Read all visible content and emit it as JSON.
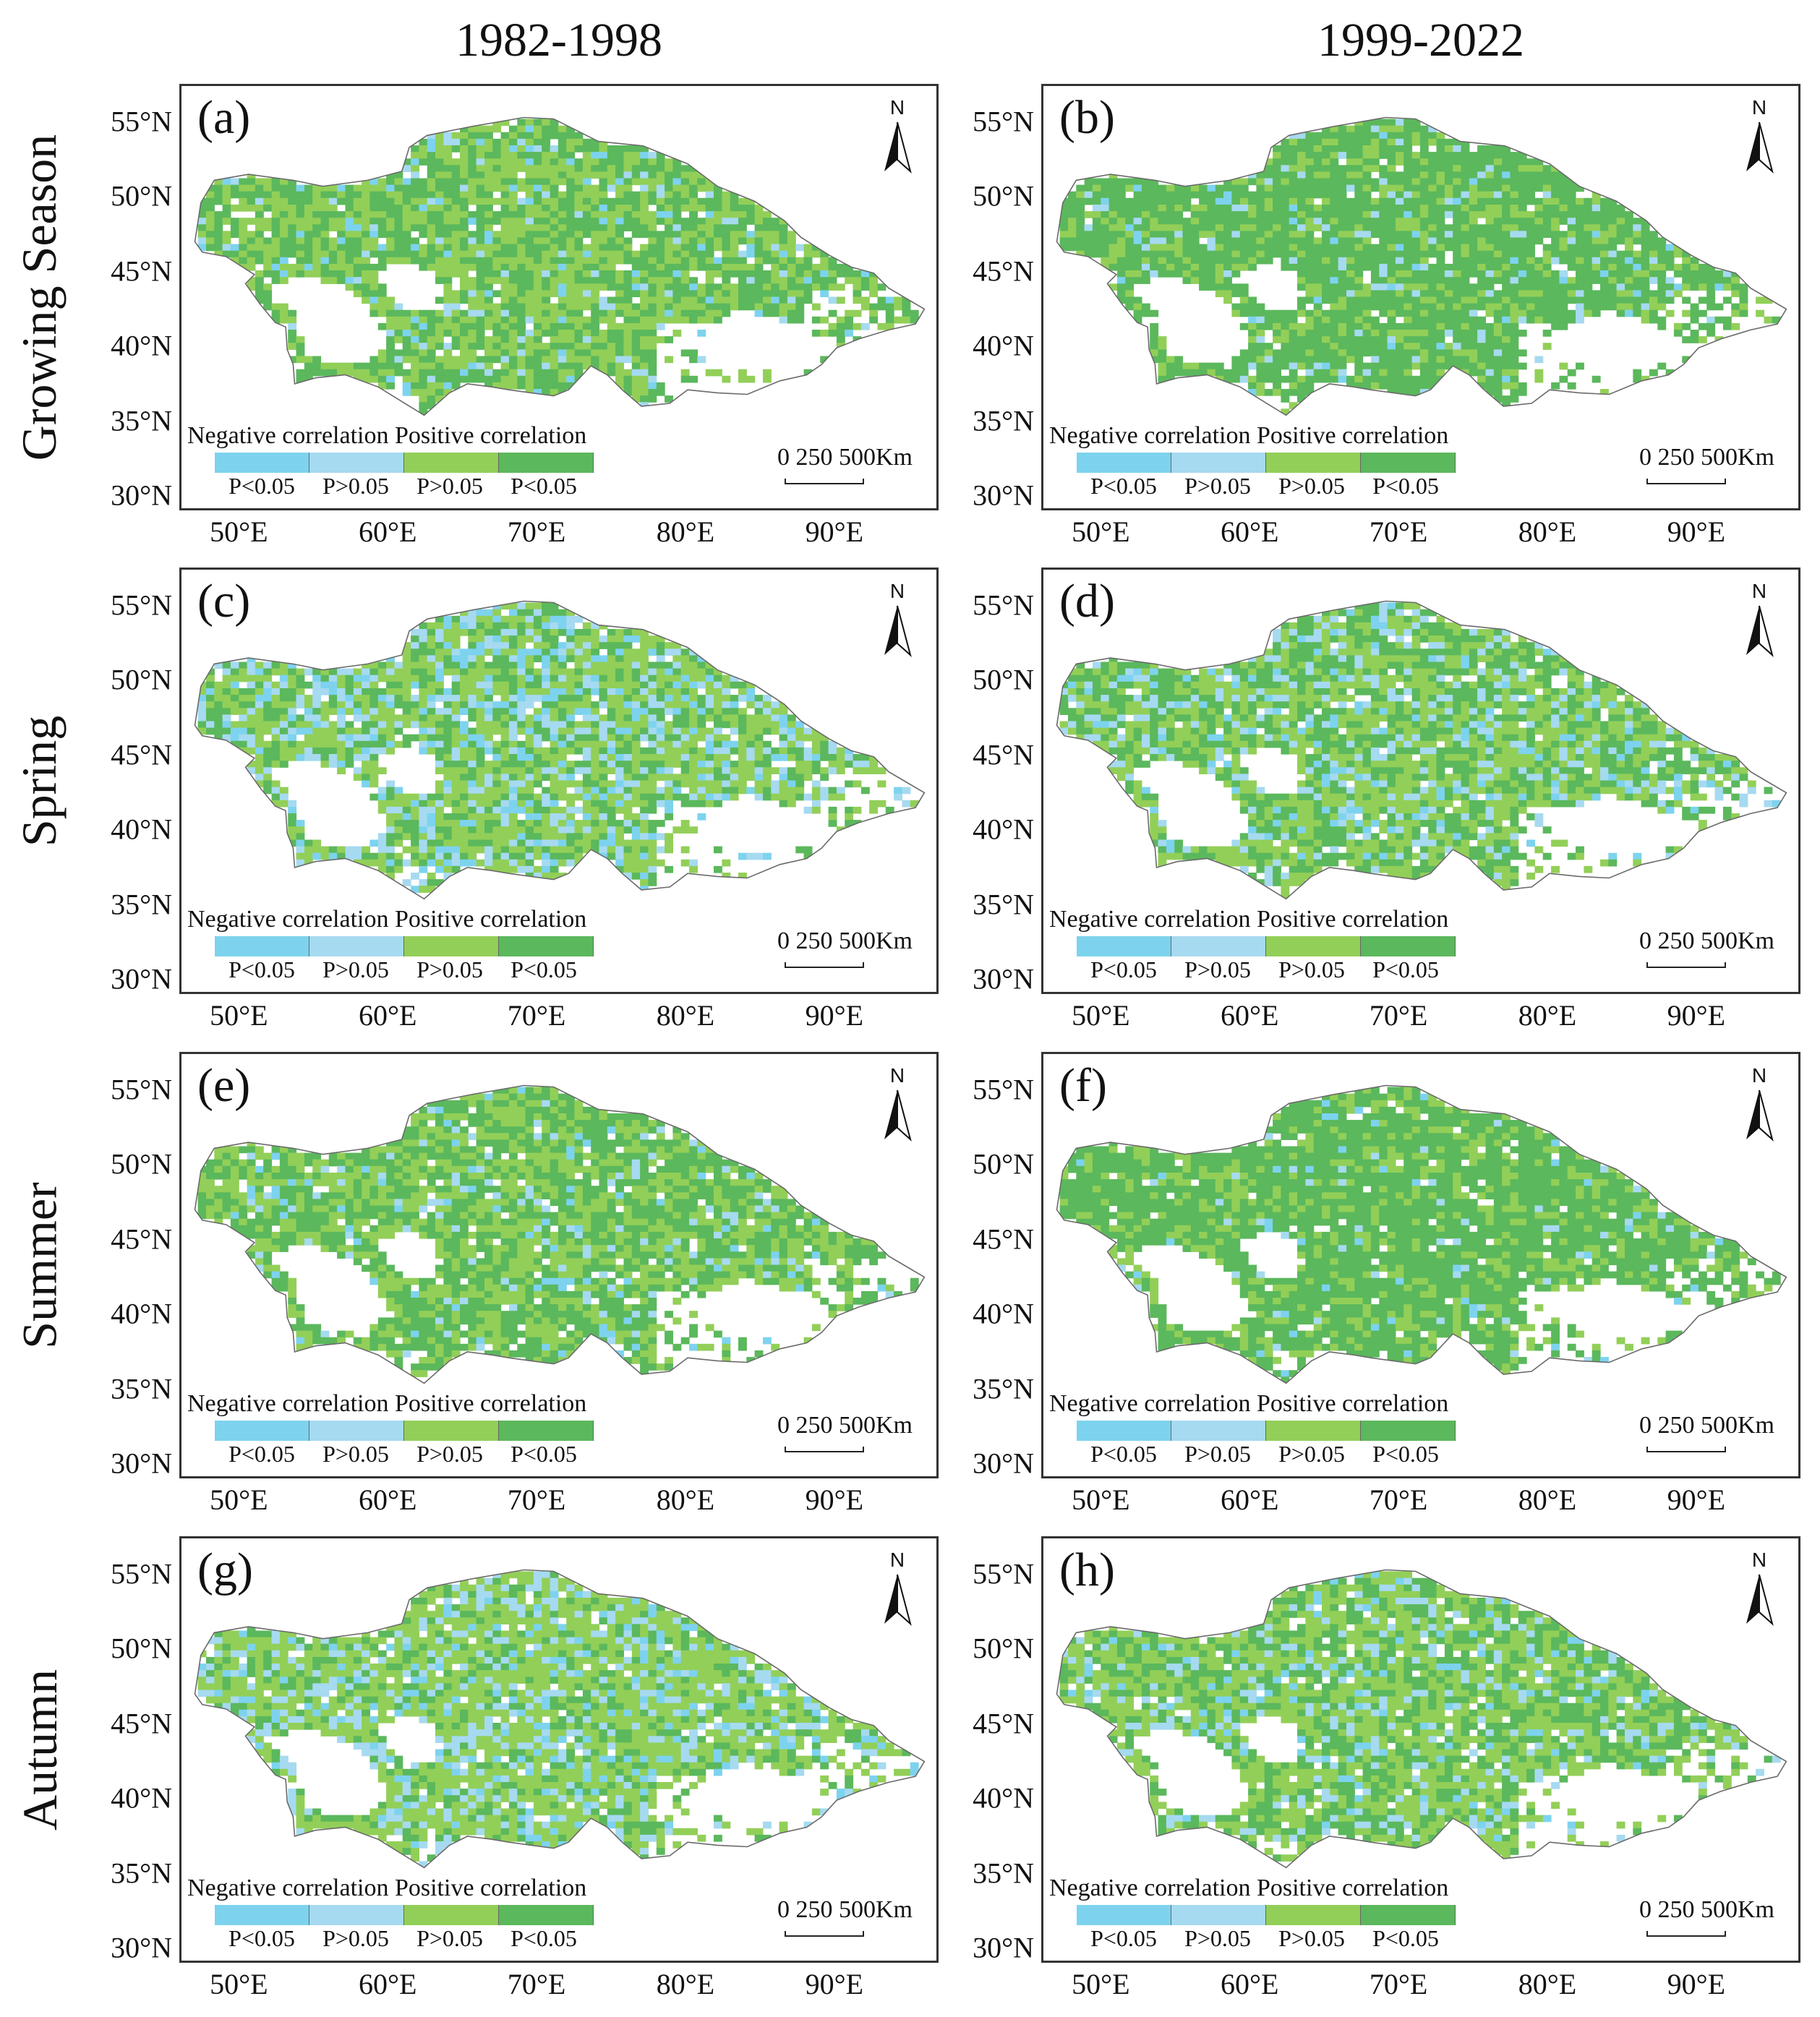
{
  "columns": [
    "1982-1998",
    "1999-2022"
  ],
  "rows": [
    "Growing Season",
    "Spring",
    "Summer",
    "Autumn"
  ],
  "panels": [
    {
      "label": "(a)",
      "period": "1982-1998",
      "season": "Growing Season",
      "mix": {
        "neg_sig": 0.05,
        "neg_ns": 0.04,
        "pos_ns": 0.46,
        "pos_sig": 0.45
      }
    },
    {
      "label": "(b)",
      "period": "1999-2022",
      "season": "Growing Season",
      "mix": {
        "neg_sig": 0.03,
        "neg_ns": 0.05,
        "pos_ns": 0.22,
        "pos_sig": 0.7
      }
    },
    {
      "label": "(c)",
      "period": "1982-1998",
      "season": "Spring",
      "mix": {
        "neg_sig": 0.12,
        "neg_ns": 0.2,
        "pos_ns": 0.43,
        "pos_sig": 0.25
      }
    },
    {
      "label": "(d)",
      "period": "1999-2022",
      "season": "Spring",
      "mix": {
        "neg_sig": 0.06,
        "neg_ns": 0.14,
        "pos_ns": 0.42,
        "pos_sig": 0.38
      }
    },
    {
      "label": "(e)",
      "period": "1982-1998",
      "season": "Summer",
      "mix": {
        "neg_sig": 0.04,
        "neg_ns": 0.06,
        "pos_ns": 0.4,
        "pos_sig": 0.5
      }
    },
    {
      "label": "(f)",
      "period": "1999-2022",
      "season": "Summer",
      "mix": {
        "neg_sig": 0.02,
        "neg_ns": 0.03,
        "pos_ns": 0.25,
        "pos_sig": 0.7
      }
    },
    {
      "label": "(g)",
      "period": "1982-1998",
      "season": "Autumn",
      "mix": {
        "neg_sig": 0.1,
        "neg_ns": 0.18,
        "pos_ns": 0.52,
        "pos_sig": 0.2
      }
    },
    {
      "label": "(h)",
      "period": "1999-2022",
      "season": "Autumn",
      "mix": {
        "neg_sig": 0.05,
        "neg_ns": 0.12,
        "pos_ns": 0.48,
        "pos_sig": 0.35
      }
    }
  ],
  "axes": {
    "lat_ticks": [
      "55°N",
      "50°N",
      "45°N",
      "40°N",
      "35°N",
      "30°N"
    ],
    "lon_ticks": [
      "50°E",
      "60°E",
      "70°E",
      "80°E",
      "90°E"
    ],
    "lat_range": [
      29,
      57.5
    ],
    "lon_range": [
      46,
      97
    ]
  },
  "north_arrow": "N",
  "legend": {
    "heading": "Negative correlation Positive correlation",
    "items": [
      {
        "label": "P<0.05",
        "color": "#7dd3ee"
      },
      {
        "label": "P>0.05",
        "color": "#a6daf0"
      },
      {
        "label": "P>0.05",
        "color": "#92cf58"
      },
      {
        "label": "P<0.05",
        "color": "#5bb85c"
      }
    ]
  },
  "scale_bar": {
    "text": "0 250 500Km"
  },
  "colors": {
    "neg_sig": "#7dd3ee",
    "neg_ns": "#a6daf0",
    "pos_ns": "#92cf58",
    "pos_sig": "#5bb85c",
    "outline": "#6a6a6a"
  }
}
